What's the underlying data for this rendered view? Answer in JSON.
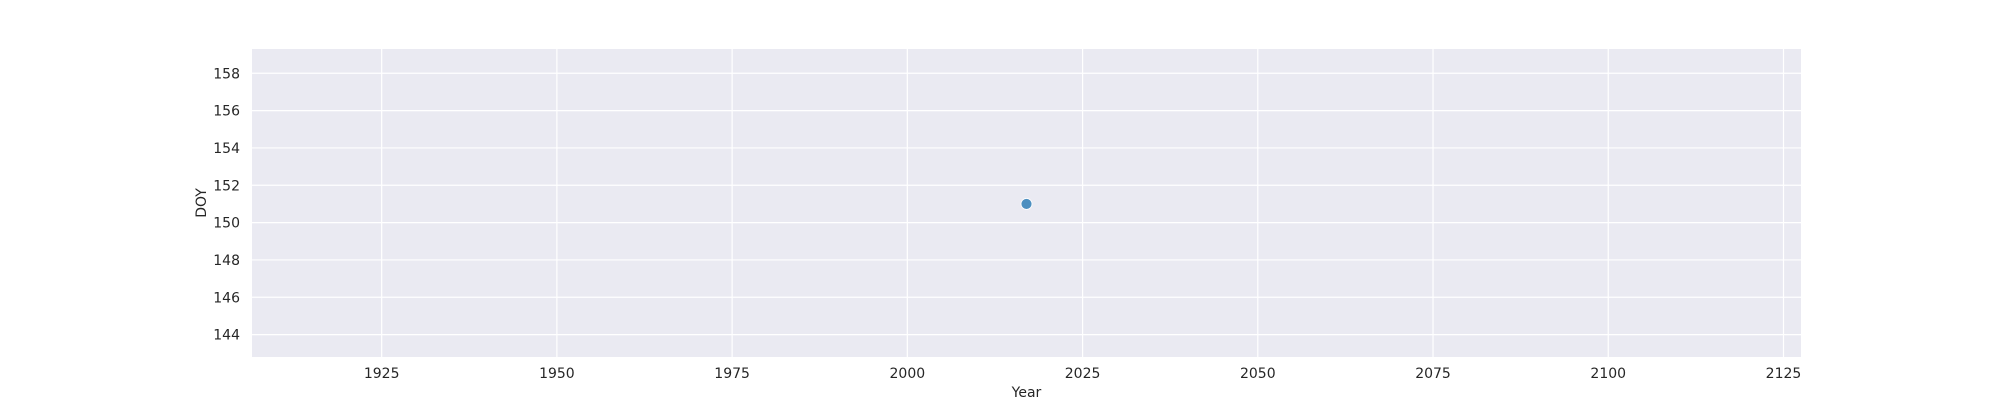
{
  "chart_data": {
    "type": "scatter",
    "title": "",
    "xlabel": "Year",
    "ylabel": "DOY",
    "xlim": [
      1906.5,
      2127.5
    ],
    "ylim": [
      142.8,
      159.3
    ],
    "xticks": [
      1925,
      1950,
      1975,
      2000,
      2025,
      2050,
      2075,
      2100,
      2125
    ],
    "yticks": [
      144,
      146,
      148,
      150,
      152,
      154,
      156,
      158
    ],
    "grid": true,
    "colors": {
      "background": "#eaeaf2",
      "grid": "#ffffff",
      "point": "#4c8fc0"
    },
    "points": [
      {
        "x": 2017,
        "y": 151
      }
    ]
  }
}
